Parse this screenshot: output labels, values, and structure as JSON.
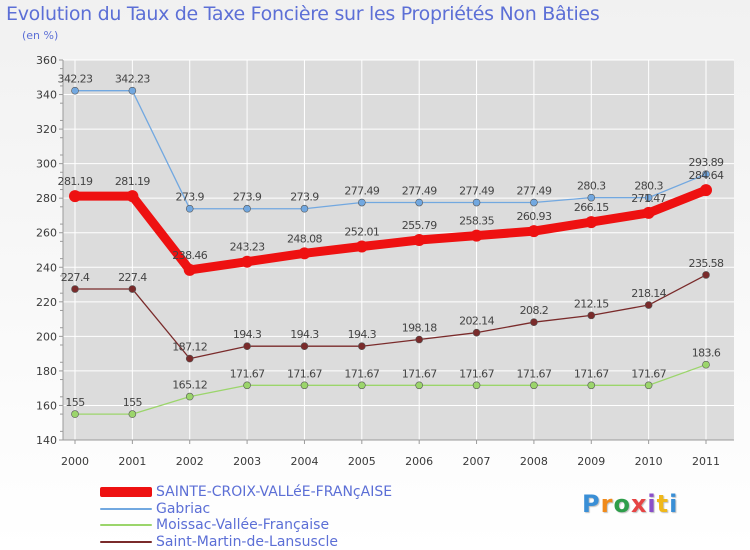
{
  "title": "Evolution du Taux de Taxe Foncière sur les Propriétés Non Bâties",
  "unit_label": "(en %)",
  "logo": {
    "text": "Proxiti",
    "colors": [
      "#3a8fd6",
      "#f08a1a",
      "#2e9e4a",
      "#e64444",
      "#8a4fc9",
      "#f0b81a",
      "#3a8fd6"
    ]
  },
  "colors": {
    "grid": "#ffffff",
    "axis": "#9a9a9a",
    "tick_text": "#3a3a3a",
    "value_text": "#444444"
  },
  "chart_data": {
    "type": "line",
    "title": "Evolution du Taux de Taxe Foncière sur les Propriétés Non Bâties",
    "ylabel": "(en %)",
    "xlabel": "",
    "ylim": [
      140,
      360
    ],
    "yticks": [
      140,
      160,
      180,
      200,
      220,
      240,
      260,
      280,
      300,
      320,
      340,
      360
    ],
    "grid": true,
    "categories": [
      "2000",
      "2001",
      "2002",
      "2003",
      "2004",
      "2005",
      "2006",
      "2007",
      "2008",
      "2009",
      "2010",
      "2011"
    ],
    "series": [
      {
        "name": "SAINTE-CROIX-VALLéE-FRANçAISE",
        "color": "#ee1111",
        "thick": true,
        "values": [
          281.19,
          281.19,
          238.46,
          243.23,
          248.08,
          252.01,
          255.79,
          258.35,
          260.93,
          266.15,
          271.47,
          284.64
        ],
        "labels": [
          "281.19",
          "281.19",
          "238.46",
          "243.23",
          "248.08",
          "252.01",
          "255.79",
          "258.35",
          "260.93",
          "266.15",
          "271.47",
          "284.64"
        ]
      },
      {
        "name": "Gabriac",
        "color": "#72a8e0",
        "thick": false,
        "values": [
          342.23,
          342.23,
          273.9,
          273.9,
          273.9,
          277.49,
          277.49,
          277.49,
          277.49,
          280.3,
          280.3,
          293.89
        ],
        "labels": [
          "342.23",
          "342.23",
          "273.9",
          "273.9",
          "273.9",
          "277.49",
          "277.49",
          "277.49",
          "277.49",
          "280.3",
          "280.3",
          "293.89"
        ]
      },
      {
        "name": "Moissac-Vallée-Française",
        "color": "#9bd56b",
        "thick": false,
        "values": [
          155,
          155,
          165.12,
          171.67,
          171.67,
          171.67,
          171.67,
          171.67,
          171.67,
          171.67,
          171.67,
          183.6
        ],
        "labels": [
          "155",
          "155",
          "165.12",
          "171.67",
          "171.67",
          "171.67",
          "171.67",
          "171.67",
          "171.67",
          "171.67",
          "171.67",
          "183.6"
        ]
      },
      {
        "name": "Saint-Martin-de-Lansuscle",
        "color": "#7a2b2b",
        "thick": false,
        "values": [
          227.4,
          227.4,
          187.12,
          194.3,
          194.3,
          194.3,
          198.18,
          202.14,
          208.2,
          212.15,
          218.14,
          235.58
        ],
        "labels": [
          "227.4",
          "227.4",
          "187.12",
          "194.3",
          "194.3",
          "194.3",
          "198.18",
          "202.14",
          "208.2",
          "212.15",
          "218.14",
          "235.58"
        ]
      }
    ],
    "legend_position": "bottom-left"
  }
}
